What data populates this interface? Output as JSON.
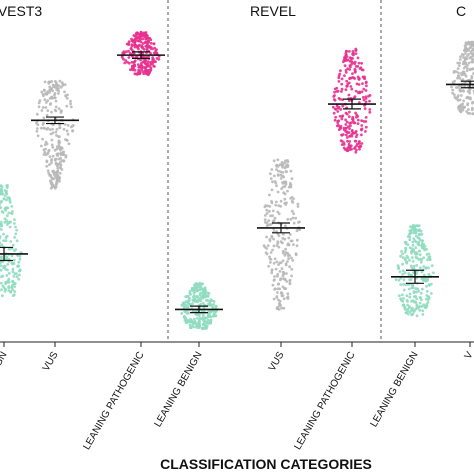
{
  "chart_data": {
    "type": "scatter",
    "style": "beeswarm with mean and error bars",
    "xlabel": "CLASSIFICATION CATEGORIES",
    "ylim": [
      0,
      1
    ],
    "grid": false,
    "panels": [
      {
        "title": "VEST3",
        "groups": [
          {
            "category": "LEANING BENIGN",
            "color": "#8fdcc0",
            "mean": 0.27,
            "error": 0.02,
            "min": 0.14,
            "max": 0.48
          },
          {
            "category": "VUS",
            "color": "#b8b8b8",
            "mean": 0.68,
            "error": 0.01,
            "min": 0.47,
            "max": 0.8
          },
          {
            "category": "LEANING PATHOGENIC",
            "color": "#e8318f",
            "mean": 0.88,
            "error": 0.01,
            "min": 0.82,
            "max": 0.95
          }
        ]
      },
      {
        "title": "REVEL",
        "groups": [
          {
            "category": "LEANING BENIGN",
            "color": "#8fdcc0",
            "mean": 0.1,
            "error": 0.01,
            "min": 0.04,
            "max": 0.18
          },
          {
            "category": "VUS",
            "color": "#b8b8b8",
            "mean": 0.35,
            "error": 0.015,
            "min": 0.1,
            "max": 0.56
          },
          {
            "category": "LEANING PATHOGENIC",
            "color": "#e8318f",
            "mean": 0.73,
            "error": 0.015,
            "min": 0.58,
            "max": 0.9
          }
        ]
      },
      {
        "title": "C",
        "groups": [
          {
            "category": "LEANING BENIGN",
            "color": "#8fdcc0",
            "mean": 0.2,
            "error": 0.02,
            "min": 0.08,
            "max": 0.36
          },
          {
            "category": "V",
            "color": "#b8b8b8",
            "mean": 0.79,
            "error": 0.01,
            "min": 0.7,
            "max": 0.92
          }
        ]
      }
    ]
  }
}
